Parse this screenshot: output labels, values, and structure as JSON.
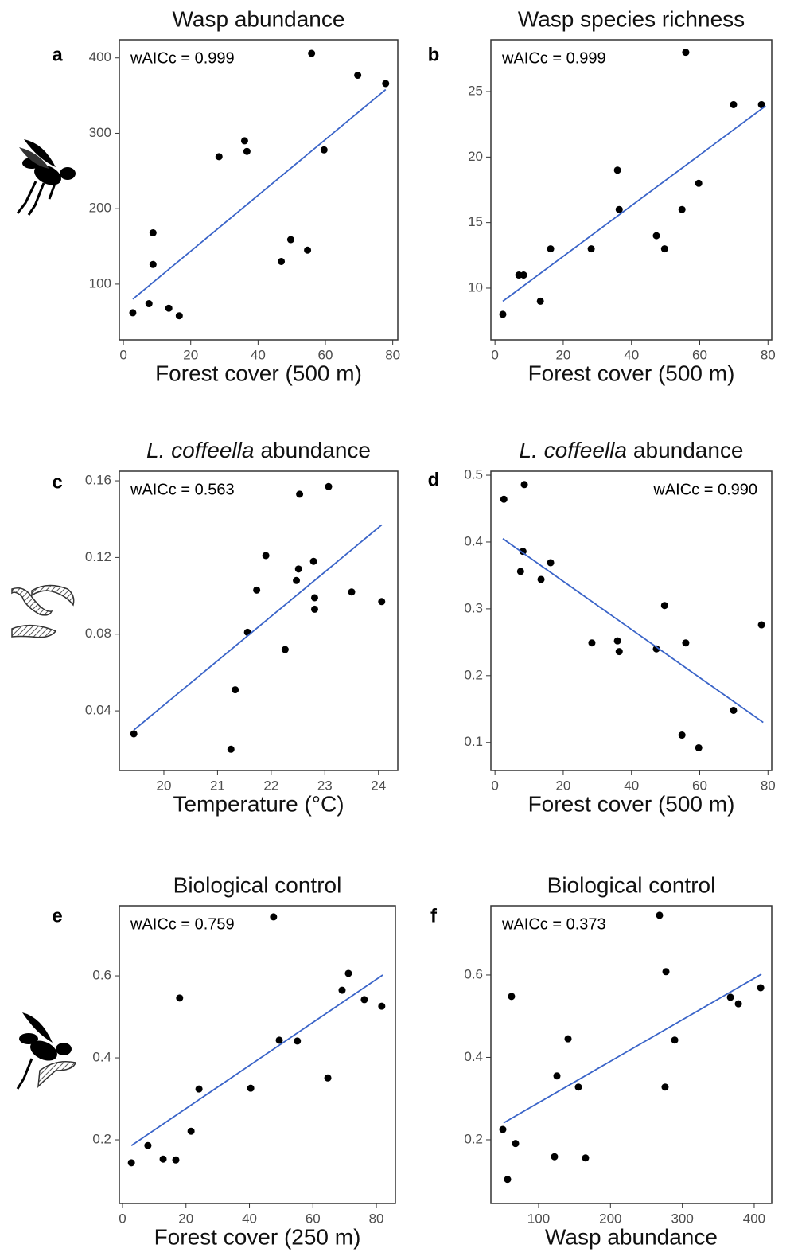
{
  "chart_data": [
    {
      "type": "scatter",
      "panel_label": "a",
      "title": "Wasp abundance",
      "x_label": "Forest cover (500 m)",
      "annotation": "wAICc = 0.999",
      "annotation_corner": "top-left",
      "x": [
        2.8,
        7.6,
        8.8,
        8.8,
        13.5,
        16.6,
        28.4,
        36,
        36.7,
        46.9,
        49.7,
        54.7,
        55.9,
        59.6,
        69.6,
        77.9
      ],
      "values": [
        62,
        74,
        126,
        168,
        68,
        58,
        269,
        290,
        276,
        130,
        159,
        145,
        406,
        278,
        377,
        366
      ],
      "color": "#000000",
      "fit": {
        "x": [
          2.8,
          77.9
        ],
        "values": [
          80,
          358
        ],
        "color": "#3a64c8"
      },
      "xlim": [
        -1.2,
        81.5
      ],
      "ylim": [
        26,
        424
      ],
      "xticks": [
        0,
        20,
        40,
        60,
        80
      ],
      "yticks": [
        100,
        200,
        300,
        400
      ]
    },
    {
      "type": "scatter",
      "panel_label": "b",
      "title": "Wasp species richness",
      "x_label": "Forest cover (500 m)",
      "annotation": "wAICc = 0.999",
      "annotation_corner": "top-left",
      "x": [
        2.3,
        7,
        8.4,
        16.3,
        13.3,
        28.2,
        35.9,
        36.4,
        47.3,
        49.7,
        54.8,
        55.9,
        59.7,
        69.9,
        78.1
      ],
      "values": [
        8,
        11,
        11,
        13,
        9,
        13,
        19,
        16,
        14,
        13,
        16,
        28,
        18,
        24,
        24
      ],
      "color": "#000000",
      "fit": {
        "x": [
          2.3,
          79.3
        ],
        "values": [
          9.0,
          23.9
        ],
        "color": "#3a64c8"
      },
      "xlim": [
        -1.2,
        81.1
      ],
      "ylim": [
        6.05,
        28.95
      ],
      "xticks": [
        0,
        20,
        40,
        60,
        80
      ],
      "yticks": [
        10,
        15,
        20,
        25
      ]
    },
    {
      "type": "scatter",
      "panel_label": "c",
      "title": [
        {
          "text": "L. coffeella",
          "style": "italic"
        },
        {
          "text": "abundance",
          "style": "normal"
        }
      ],
      "x_label": "Temperature (°C)",
      "annotation": "wAICc = 0.563",
      "annotation_corner": "top-left",
      "x": [
        19.44,
        21.25,
        21.33,
        21.56,
        21.73,
        21.9,
        22.26,
        22.47,
        22.51,
        22.53,
        22.79,
        22.81,
        22.81,
        23.07,
        23.5,
        24.06
      ],
      "values": [
        0.028,
        0.02,
        0.051,
        0.081,
        0.103,
        0.121,
        0.072,
        0.108,
        0.114,
        0.153,
        0.118,
        0.099,
        0.093,
        0.157,
        0.102,
        0.097
      ],
      "color": "#000000",
      "fit": {
        "x": [
          19.44,
          24.06
        ],
        "values": [
          0.03,
          0.137
        ],
        "color": "#3a64c8"
      },
      "xlim": [
        19.17,
        24.36
      ],
      "ylim": [
        0.0089,
        0.165
      ],
      "xticks": [
        20,
        21,
        22,
        23,
        24
      ],
      "yticks": [
        0.04,
        0.08,
        0.12,
        0.16
      ]
    },
    {
      "type": "scatter",
      "panel_label": "d",
      "title": [
        {
          "text": "L. coffeella",
          "style": "italic"
        },
        {
          "text": "abundance",
          "style": "normal"
        }
      ],
      "x_label": "Forest cover (500 m)",
      "annotation": "wAICc = 0.990",
      "annotation_corner": "top-right",
      "x": [
        2.6,
        8.6,
        8.2,
        7.5,
        16.3,
        13.5,
        28.4,
        35.9,
        36.4,
        47.3,
        49.7,
        55.9,
        54.8,
        59.7,
        69.9,
        78.1
      ],
      "values": [
        0.464,
        0.486,
        0.386,
        0.356,
        0.369,
        0.344,
        0.249,
        0.252,
        0.236,
        0.24,
        0.305,
        0.249,
        0.111,
        0.092,
        0.148,
        0.276
      ],
      "color": "#000000",
      "fit": {
        "x": [
          2.3,
          78.6
        ],
        "values": [
          0.405,
          0.13
        ],
        "color": "#3a64c8"
      },
      "xlim": [
        -1.2,
        81.1
      ],
      "ylim": [
        0.058,
        0.506
      ],
      "xticks": [
        0,
        20,
        40,
        60,
        80
      ],
      "yticks": [
        0.1,
        0.2,
        0.3,
        0.4,
        0.5
      ]
    },
    {
      "type": "scatter",
      "panel_label": "e",
      "title": "Biological control",
      "x_label": "Forest cover (250 m)",
      "annotation": "wAICc = 0.759",
      "annotation_corner": "top-left",
      "x": [
        2.8,
        8,
        12.8,
        16.8,
        18,
        21.6,
        24.1,
        40.4,
        47.6,
        49.4,
        55.1,
        64.7,
        69.2,
        71.2,
        76.2,
        81.7
      ],
      "values": [
        0.144,
        0.186,
        0.153,
        0.151,
        0.546,
        0.221,
        0.324,
        0.326,
        0.744,
        0.443,
        0.441,
        0.351,
        0.565,
        0.606,
        0.542,
        0.526
      ],
      "color": "#000000",
      "fit": {
        "x": [
          2.8,
          82
        ],
        "values": [
          0.186,
          0.602
        ],
        "color": "#3a64c8"
      },
      "xlim": [
        -1.0,
        86
      ],
      "ylim": [
        0.0447,
        0.771
      ],
      "xticks": [
        0,
        20,
        40,
        60,
        80
      ],
      "yticks": [
        0.2,
        0.4,
        0.6
      ]
    },
    {
      "type": "scatter",
      "panel_label": "f",
      "title": "Biological control",
      "x_label": "Wasp abundance",
      "annotation": "wAICc = 0.373",
      "annotation_corner": "top-left",
      "x": [
        50.2,
        56.8,
        62.3,
        67.9,
        122.1,
        125.5,
        141,
        155.4,
        165.3,
        268.3,
        276,
        277.2,
        289.4,
        366.9,
        378,
        409
      ],
      "values": [
        0.225,
        0.104,
        0.548,
        0.191,
        0.159,
        0.355,
        0.445,
        0.328,
        0.156,
        0.745,
        0.328,
        0.608,
        0.442,
        0.546,
        0.53,
        0.569
      ],
      "color": "#000000",
      "fit": {
        "x": [
          51.3,
          410
        ],
        "values": [
          0.241,
          0.602
        ],
        "color": "#3a64c8"
      },
      "xlim": [
        33.6,
        424.4
      ],
      "ylim": [
        0.0454,
        0.768
      ],
      "xticks": [
        100,
        200,
        300,
        400
      ],
      "yticks": [
        0.2,
        0.4,
        0.6
      ]
    }
  ]
}
